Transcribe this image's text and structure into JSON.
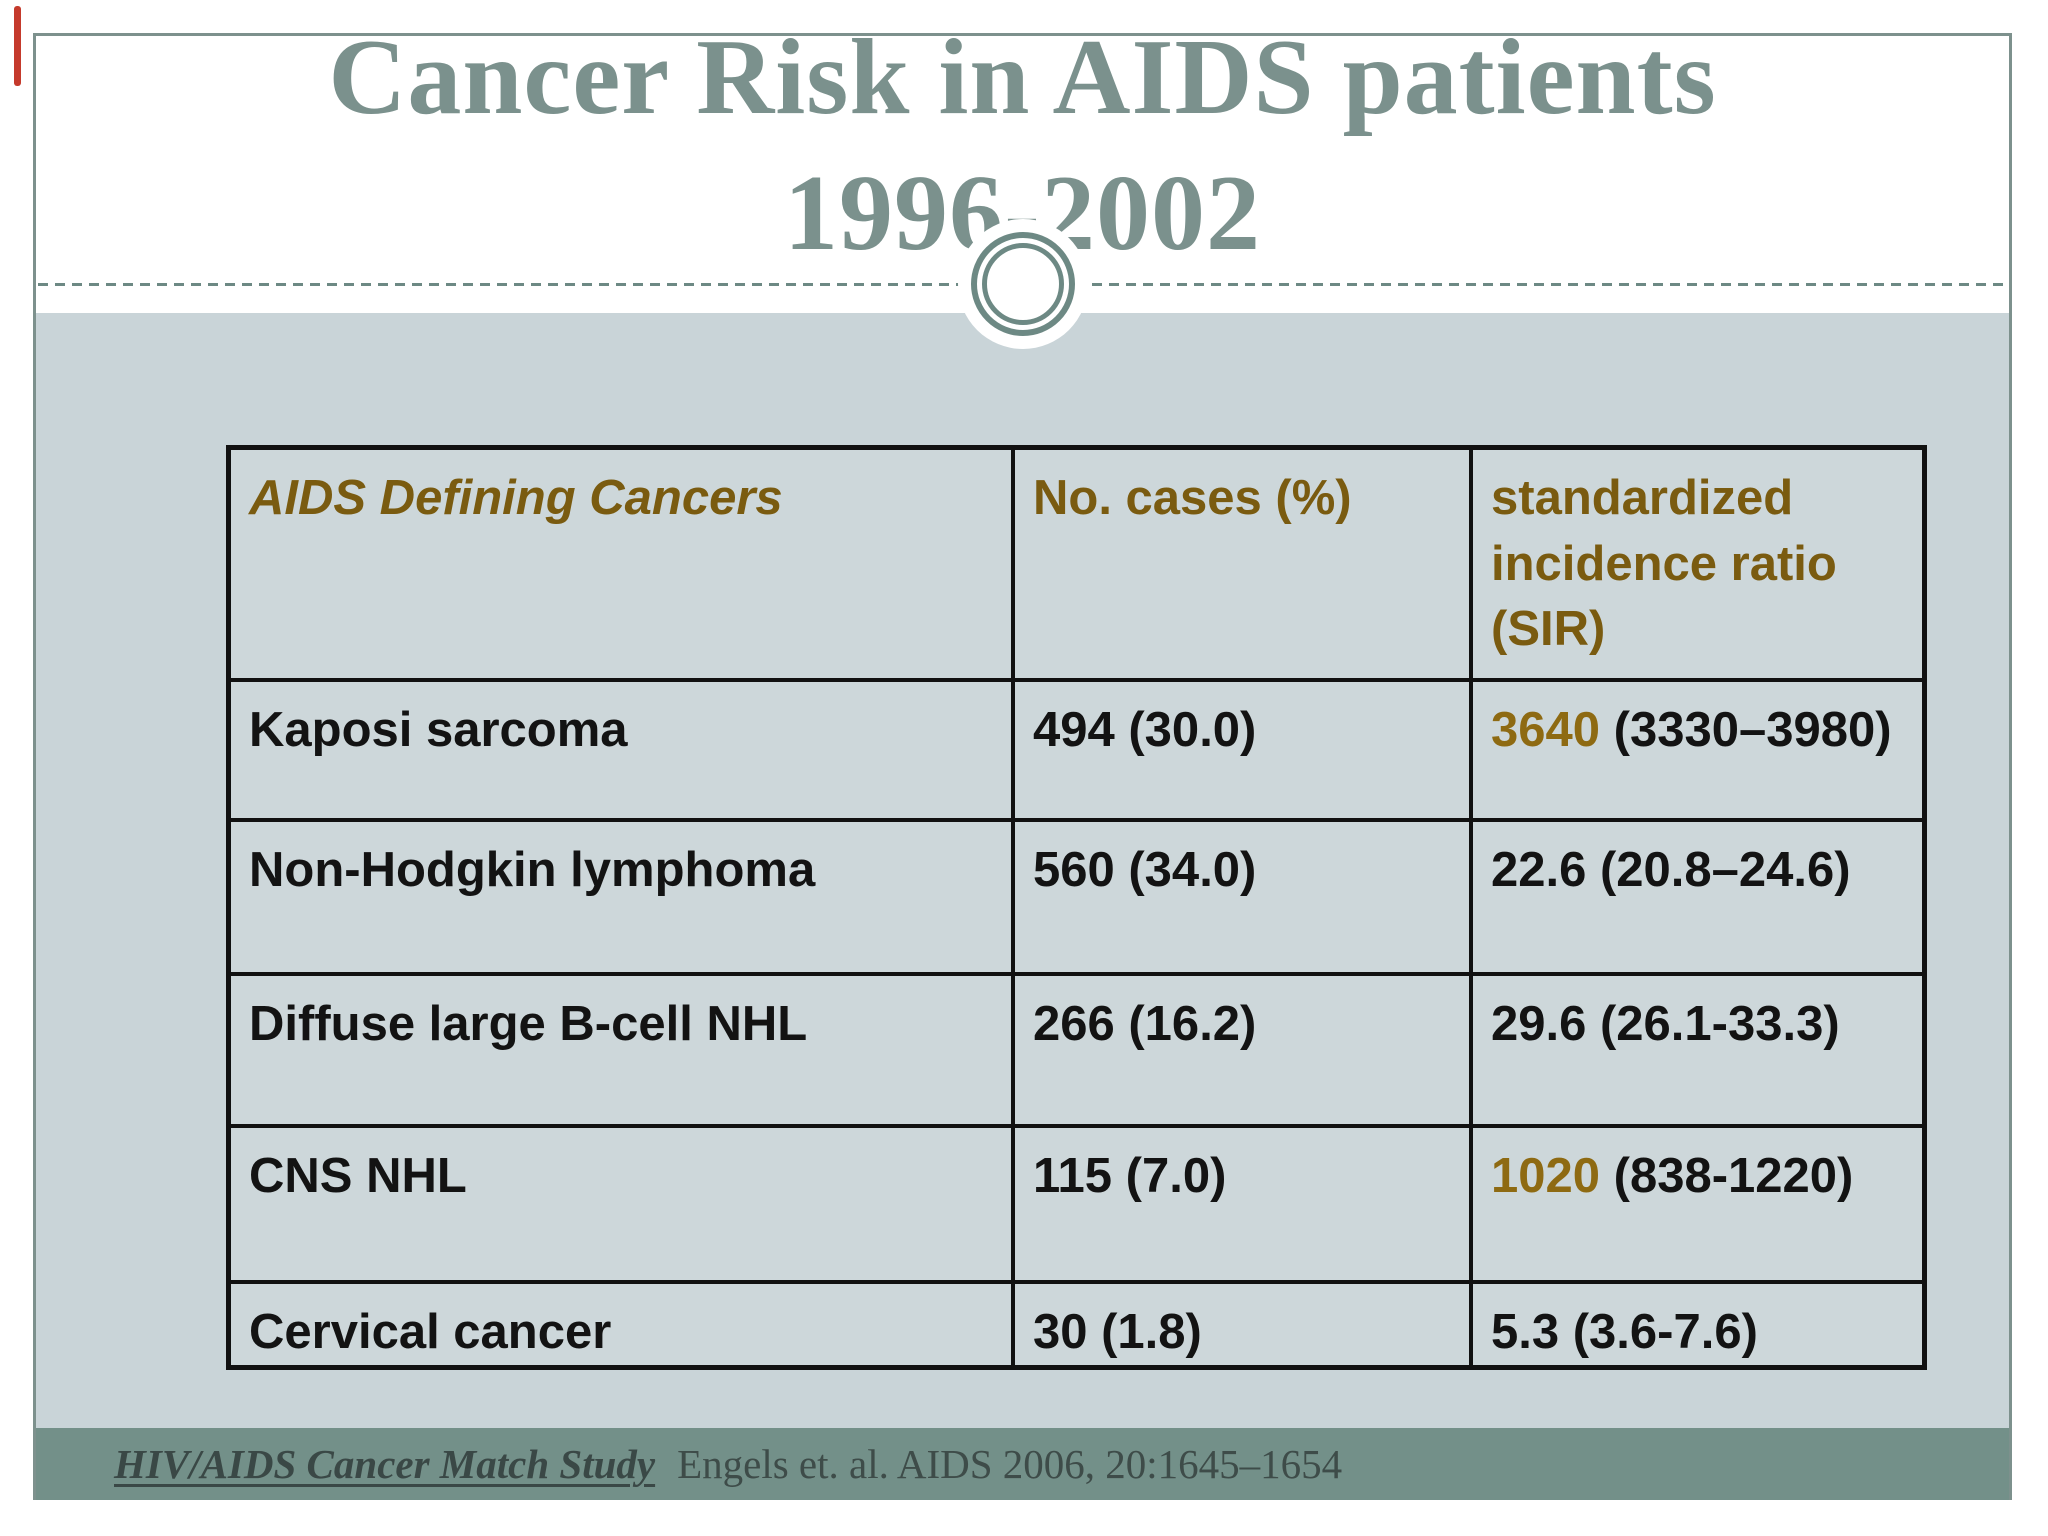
{
  "slide": {
    "title_line1": "Cancer Risk in AIDS patients",
    "title_line2": "1996-2002"
  },
  "table": {
    "headers": {
      "cancers": "AIDS Defining Cancers",
      "cases": "No. cases (%)",
      "sir": "standardized incidence ratio (SIR)"
    },
    "rows": [
      {
        "cancer": "Kaposi sarcoma",
        "cases": "494 (30.0)",
        "sir_value": "3640",
        "sir_ci": " (3330–3980)"
      },
      {
        "cancer": "Non-Hodgkin lymphoma",
        "cases": "560 (34.0)",
        "sir_value": "",
        "sir_ci": "22.6 (20.8–24.6)"
      },
      {
        "cancer": "Diffuse large B-cell NHL",
        "cases": "266 (16.2)",
        "sir_value": "",
        "sir_ci": "29.6 (26.1-33.3)"
      },
      {
        "cancer": "CNS NHL",
        "cases": "115 (7.0)",
        "sir_value": "1020",
        "sir_ci": " (838-1220)"
      },
      {
        "cancer": "Cervical cancer",
        "cases": "30 (1.8)",
        "sir_value": "",
        "sir_ci": "5.3 (3.6-7.6)"
      }
    ]
  },
  "footer": {
    "source": "HIV/AIDS Cancer Match Study",
    "citation": "Engels et. al. AIDS 2006, 20:1645–1654"
  },
  "colors": {
    "title_teal": "#7b918d",
    "frame_teal": "#7d918d",
    "ornament_teal": "#6d8984",
    "body_gray": "#c9d4d8",
    "table_cell_bg": "#cdd7da",
    "table_border": "#111111",
    "olive_header": "#7a5b10",
    "gold_highlight": "#8e6a12",
    "footer_bar": "#739089",
    "footer_text": "#3e4c49",
    "accent_red": "#c53a2c"
  }
}
